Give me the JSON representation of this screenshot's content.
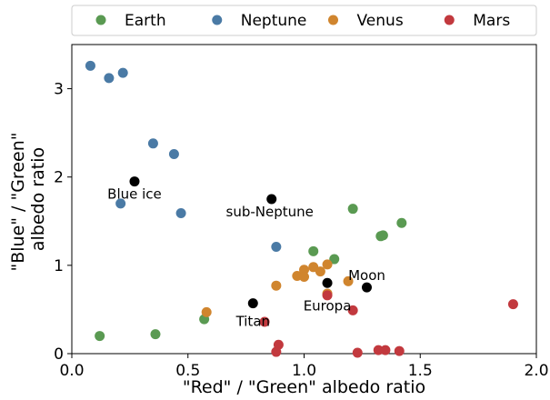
{
  "chart_data": {
    "type": "scatter",
    "xlabel": "\"Red\" / \"Green\" albedo ratio",
    "ylabel_lines": [
      "\"Blue\" / \"Green\"",
      "albedo ratio"
    ],
    "xlim": [
      0,
      2.0
    ],
    "ylim": [
      0,
      3.5
    ],
    "xticks": [
      0.0,
      0.5,
      1.0,
      1.5,
      2.0
    ],
    "xtick_labels": [
      "0.0",
      "0.5",
      "1.0",
      "1.5",
      "2.0"
    ],
    "yticks": [
      0,
      1,
      2,
      3
    ],
    "ytick_labels": [
      "0",
      "1",
      "2",
      "3"
    ],
    "grid": false,
    "legend_position": "top",
    "series": [
      {
        "name": "Earth",
        "color": "#5a9a52",
        "points": [
          [
            0.12,
            0.2
          ],
          [
            0.36,
            0.22
          ],
          [
            0.57,
            0.39
          ],
          [
            1.04,
            1.16
          ],
          [
            1.13,
            1.07
          ],
          [
            1.21,
            1.64
          ],
          [
            1.33,
            1.33
          ],
          [
            1.34,
            1.34
          ],
          [
            1.42,
            1.48
          ]
        ]
      },
      {
        "name": "Neptune",
        "color": "#4a7aa5",
        "points": [
          [
            0.08,
            3.26
          ],
          [
            0.16,
            3.12
          ],
          [
            0.22,
            3.18
          ],
          [
            0.35,
            2.38
          ],
          [
            0.44,
            2.26
          ],
          [
            0.21,
            1.7
          ],
          [
            0.47,
            1.59
          ],
          [
            0.88,
            1.21
          ]
        ]
      },
      {
        "name": "Venus",
        "color": "#d0852e",
        "points": [
          [
            0.58,
            0.47
          ],
          [
            0.88,
            0.77
          ],
          [
            0.97,
            0.88
          ],
          [
            1.0,
            0.95
          ],
          [
            1.0,
            0.87
          ],
          [
            1.04,
            0.98
          ],
          [
            1.07,
            0.93
          ],
          [
            1.1,
            1.01
          ],
          [
            1.19,
            0.82
          ],
          [
            1.1,
            0.68
          ]
        ]
      },
      {
        "name": "Mars",
        "color": "#c2393e",
        "points": [
          [
            0.83,
            0.36
          ],
          [
            0.88,
            0.02
          ],
          [
            0.89,
            0.1
          ],
          [
            1.1,
            0.66
          ],
          [
            1.21,
            0.49
          ],
          [
            1.23,
            0.01
          ],
          [
            1.32,
            0.04
          ],
          [
            1.35,
            0.04
          ],
          [
            1.41,
            0.03
          ],
          [
            1.9,
            0.56
          ]
        ]
      }
    ],
    "annotated_points": [
      {
        "label": "Blue ice",
        "x": 0.27,
        "y": 1.95
      },
      {
        "label": "sub-Neptune",
        "x": 0.86,
        "y": 1.75
      },
      {
        "label": "Moon",
        "x": 1.27,
        "y": 0.75
      },
      {
        "label": "Europa",
        "x": 1.1,
        "y": 0.8
      },
      {
        "label": "Titan",
        "x": 0.78,
        "y": 0.57
      }
    ],
    "annotation_color": "#000000"
  }
}
